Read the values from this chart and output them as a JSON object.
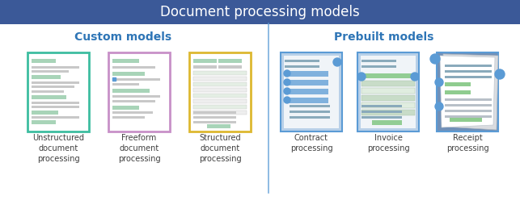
{
  "title": "Document processing models",
  "title_bg_color": "#3B5998",
  "title_text_color": "#FFFFFF",
  "bg_color": "#FFFFFF",
  "custom_label": "Custom models",
  "prebuilt_label": "Prebuilt models",
  "section_label_color": "#2E75B6",
  "divider_color": "#5B9BD5",
  "custom_models": [
    {
      "label": "Unstructured\ndocument\nprocessing",
      "border_color": "#3DBDA0",
      "doc_type": "unstructured"
    },
    {
      "label": "Freeform\ndocument\nprocessing",
      "border_color": "#C890C8",
      "doc_type": "freeform"
    },
    {
      "label": "Structured\ndocument\nprocessing",
      "border_color": "#DDB830",
      "doc_type": "structured"
    }
  ],
  "prebuilt_models": [
    {
      "label": "Contract\nprocessing",
      "border_color": "#5B9BD5",
      "bg_color": "#B8D0E8",
      "doc_type": "contract"
    },
    {
      "label": "Invoice\nprocessing",
      "border_color": "#5B9BD5",
      "bg_color": "#B8D0E8",
      "doc_type": "invoice"
    },
    {
      "label": "Receipt\nprocessing",
      "border_color": "#5B9BD5",
      "bg_color": "#7090B8",
      "doc_type": "receipt"
    }
  ],
  "label_text_color": "#404040",
  "label_fontsize": 7,
  "section_fontsize": 10,
  "title_fontsize": 12
}
